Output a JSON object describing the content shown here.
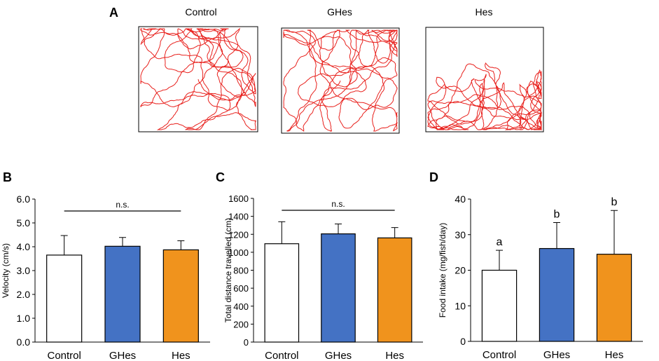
{
  "panels": {
    "A": {
      "label": "A",
      "arenas": [
        {
          "title": "Control",
          "seed": 11
        },
        {
          "title": "GHes",
          "seed": 29
        },
        {
          "title": "Hes",
          "seed": 47
        }
      ],
      "track_color": "#e8201c"
    }
  },
  "colors": {
    "Control": "#ffffff",
    "GHes": "#4472c4",
    "Hes": "#f0931d",
    "axis": "#000000"
  },
  "chart_data": [
    {
      "panel": "B",
      "type": "bar",
      "title": "",
      "categories": [
        "Control",
        "GHes",
        "Hes"
      ],
      "values": [
        3.65,
        4.02,
        3.87
      ],
      "errors": [
        0.82,
        0.37,
        0.38
      ],
      "xlabel": "",
      "ylabel": "Velocity (cm/s)",
      "ylim": [
        0,
        6
      ],
      "yticks": [
        "0.0",
        "1.0",
        "2.0",
        "3.0",
        "4.0",
        "5.0",
        "6.0"
      ],
      "significance": "n.s."
    },
    {
      "panel": "C",
      "type": "bar",
      "title": "",
      "categories": [
        "Control",
        "GHes",
        "Hes"
      ],
      "values": [
        1095,
        1205,
        1160
      ],
      "errors": [
        245,
        110,
        115
      ],
      "xlabel": "",
      "ylabel": "Total distance travelled (cm)",
      "ylim": [
        0,
        1600
      ],
      "yticks": [
        "0",
        "200",
        "400",
        "600",
        "800",
        "1000",
        "1200",
        "1400",
        "1600"
      ],
      "significance": "n.s."
    },
    {
      "panel": "D",
      "type": "bar",
      "title": "",
      "categories": [
        "Control",
        "GHes",
        "Hes"
      ],
      "values": [
        20.0,
        26.1,
        24.5
      ],
      "errors": [
        5.6,
        7.3,
        12.3
      ],
      "xlabel": "",
      "ylabel": "Food intake (mg/fish/day)",
      "ylim": [
        0,
        40
      ],
      "yticks": [
        "0",
        "10",
        "20",
        "30",
        "40"
      ],
      "bar_labels": [
        "a",
        "b",
        "b"
      ]
    }
  ]
}
